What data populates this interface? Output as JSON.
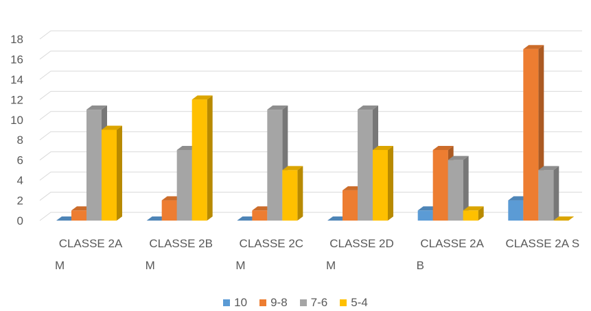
{
  "chart_data": {
    "type": "bar",
    "style": "3d-clustered-column",
    "categories": [
      [
        "CLASSE 2A",
        "M"
      ],
      [
        "CLASSE 2B",
        "M"
      ],
      [
        "CLASSE 2C",
        "M"
      ],
      [
        "CLASSE 2D",
        "M"
      ],
      [
        "CLASSE 2A",
        "B"
      ],
      [
        "CLASSE 2A S",
        ""
      ]
    ],
    "series": [
      {
        "name": "10",
        "color": "#5B9BD5",
        "values": [
          0,
          0,
          0,
          0,
          1,
          2
        ]
      },
      {
        "name": "9-8",
        "color": "#ED7D31",
        "values": [
          1,
          2,
          1,
          3,
          7,
          17
        ]
      },
      {
        "name": "7-6",
        "color": "#A5A5A5",
        "values": [
          11,
          7,
          11,
          11,
          6,
          5
        ]
      },
      {
        "name": "5-4",
        "color": "#FFC000",
        "values": [
          9,
          12,
          5,
          7,
          1,
          0
        ]
      }
    ],
    "ylim": [
      0,
      18
    ],
    "yticks": [
      0,
      2,
      4,
      6,
      8,
      10,
      12,
      14,
      16,
      18
    ],
    "grid": true,
    "legend": "bottom"
  }
}
